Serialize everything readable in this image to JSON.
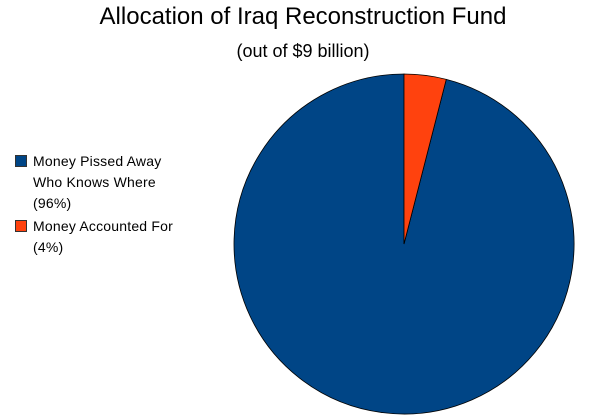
{
  "chart_data": {
    "type": "pie",
    "title": "Allocation of Iraq Reconstruction Fund",
    "subtitle": "(out of $9 billion)",
    "legend_position": "left",
    "slices": [
      {
        "label": "Money Pissed Away Who Knows Where (96%)",
        "value": 96,
        "color": "#004586"
      },
      {
        "label": "Money Accounted For (4%)",
        "value": 4,
        "color": "#ff420e"
      }
    ]
  }
}
